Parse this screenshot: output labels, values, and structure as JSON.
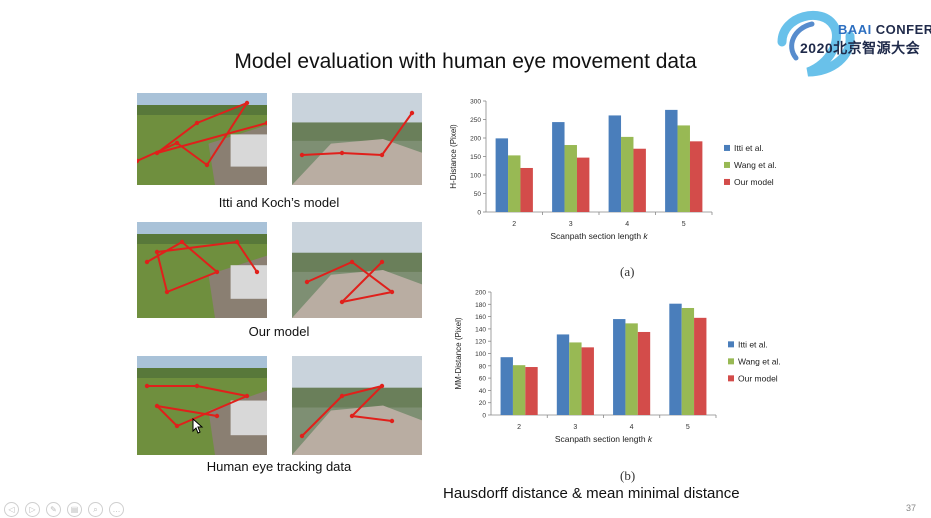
{
  "slide": {
    "title": "Model evaluation with human eye movement data",
    "footer_caption": "Hausdorff distance & mean minimal distance",
    "page_number": "37"
  },
  "logo": {
    "line1": "CONFERENCE",
    "line2": "2020北京智源大会",
    "brand": "BAAI"
  },
  "image_rows": [
    {
      "caption": "Itti and Koch’s model"
    },
    {
      "caption": "Our model"
    },
    {
      "caption": "Human eye tracking data"
    }
  ],
  "colors": {
    "itti": "#4a7ebb",
    "wang": "#98b954",
    "ours": "#d34c4a",
    "scanpath": "#e0201b"
  },
  "toolbar": {
    "icons": [
      "prev-icon",
      "next-icon",
      "pen-icon",
      "slides-icon",
      "zoom-icon",
      "more-icon"
    ]
  },
  "chart_data": [
    {
      "type": "bar",
      "sublabel": "(a)",
      "categories": [
        "2",
        "3",
        "4",
        "5"
      ],
      "series": [
        {
          "name": "Itti et al.",
          "values": [
            199,
            243,
            261,
            276
          ]
        },
        {
          "name": "Wang et al.",
          "values": [
            153,
            181,
            203,
            234
          ]
        },
        {
          "name": "Our model",
          "values": [
            119,
            147,
            171,
            191
          ]
        }
      ],
      "xlabel": "Scanpath section length k",
      "ylabel": "H-Distance (Pixel)",
      "ylim": [
        0,
        300
      ],
      "yticks": [
        0,
        50,
        100,
        150,
        200,
        250,
        300
      ],
      "legend": "right"
    },
    {
      "type": "bar",
      "sublabel": "(b)",
      "categories": [
        "2",
        "3",
        "4",
        "5"
      ],
      "series": [
        {
          "name": "Itti et al.",
          "values": [
            94,
            131,
            156,
            181
          ]
        },
        {
          "name": "Wang et al.",
          "values": [
            81,
            118,
            149,
            174
          ]
        },
        {
          "name": "Our model",
          "values": [
            78,
            110,
            135,
            158
          ]
        }
      ],
      "xlabel": "Scanpath section length k",
      "ylabel": "MM-Distance (Pixel)",
      "ylim": [
        0,
        200
      ],
      "yticks": [
        0,
        20,
        40,
        60,
        80,
        100,
        120,
        140,
        160,
        180,
        200
      ],
      "legend": "right"
    }
  ]
}
